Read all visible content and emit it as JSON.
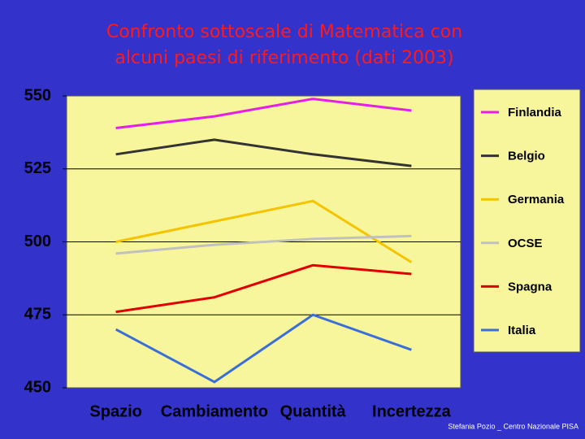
{
  "chart_data": {
    "type": "line",
    "title": [
      "Confronto sottoscale di Matematica con",
      "alcuni paesi di riferimento (dati 2003)"
    ],
    "categories": [
      "Spazio",
      "Cambiamento",
      "Quantità",
      "Incertezza"
    ],
    "series": [
      {
        "name": "Finlandia",
        "color": "#e61ee6",
        "values": [
          539,
          543,
          549,
          545
        ]
      },
      {
        "name": "Belgio",
        "color": "#333333",
        "values": [
          530,
          535,
          530,
          526
        ]
      },
      {
        "name": "Germania",
        "color": "#f5c400",
        "values": [
          500,
          507,
          514,
          493
        ]
      },
      {
        "name": "OCSE",
        "color": "#c0c0c0",
        "values": [
          496,
          499,
          501,
          502
        ]
      },
      {
        "name": "Spagna",
        "color": "#e00000",
        "values": [
          476,
          481,
          492,
          489
        ]
      },
      {
        "name": "Italia",
        "color": "#3a6fd8",
        "values": [
          470,
          452,
          475,
          463
        ]
      }
    ],
    "ylim": [
      450,
      550
    ],
    "yticks": [
      450,
      475,
      500,
      525,
      550
    ],
    "grid": true,
    "legend": "right",
    "footer": "Stefania Pozio _ Centro Nazionale PISA"
  }
}
